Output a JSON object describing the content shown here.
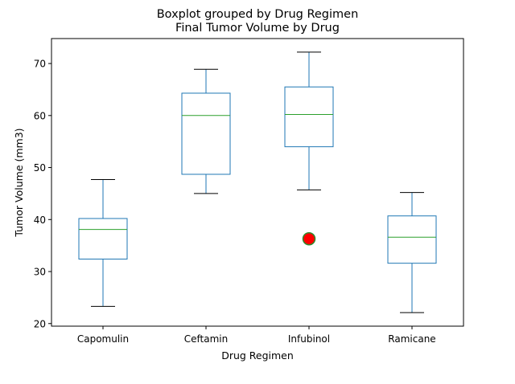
{
  "chart_data": {
    "type": "box",
    "title": "Boxplot grouped by Drug Regimen",
    "subtitle": "Final Tumor Volume by Drug",
    "xlabel": "Drug Regimen",
    "ylabel": "Tumor Volume (mm3)",
    "ylim": [
      19.5,
      74.8
    ],
    "yticks": [
      20,
      30,
      40,
      50,
      60,
      70
    ],
    "grid": false,
    "categories": [
      "Capomulin",
      "Ceftamin",
      "Infubinol",
      "Ramicane"
    ],
    "boxes": [
      {
        "name": "Capomulin",
        "whislo": 23.3,
        "q1": 32.4,
        "med": 38.1,
        "q3": 40.2,
        "whishi": 47.7,
        "fliers": []
      },
      {
        "name": "Ceftamin",
        "whislo": 45.0,
        "q1": 48.7,
        "med": 60.0,
        "q3": 64.3,
        "whishi": 68.9,
        "fliers": []
      },
      {
        "name": "Infubinol",
        "whislo": 45.7,
        "q1": 54.0,
        "med": 60.2,
        "q3": 65.5,
        "whishi": 72.2,
        "fliers": [
          36.3
        ]
      },
      {
        "name": "Ramicane",
        "whislo": 22.1,
        "q1": 31.6,
        "med": 36.6,
        "q3": 40.7,
        "whishi": 45.2,
        "fliers": []
      }
    ],
    "colors": {
      "box": "#1f77b4",
      "median": "#2ca02c",
      "whisker_cap": "#000000",
      "flier_fill": "#ff0000",
      "flier_edge": "#2e8b2e"
    }
  }
}
